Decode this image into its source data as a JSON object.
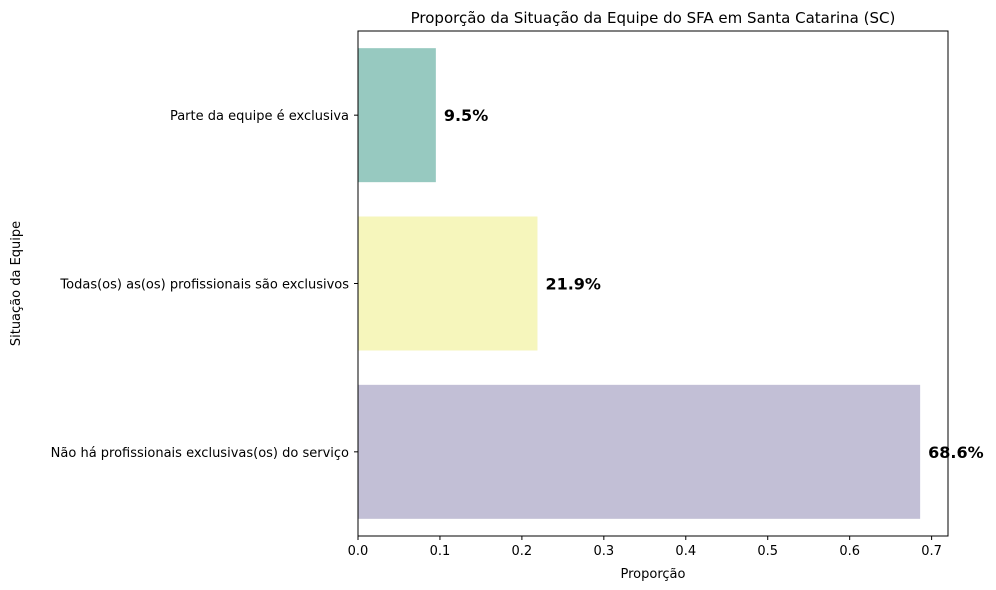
{
  "chart_data": {
    "type": "bar",
    "orientation": "horizontal",
    "title": "Proporção da Situação da Equipe do SFA em Santa Catarina (SC)",
    "xlabel": "Proporção",
    "ylabel": "Situação da Equipe",
    "xlim": [
      0,
      0.72
    ],
    "xticks": [
      "0.0",
      "0.1",
      "0.2",
      "0.3",
      "0.4",
      "0.5",
      "0.6",
      "0.7"
    ],
    "grid": false,
    "categories": [
      "Parte da equipe é exclusiva",
      "Todas(os) as(os) profissionais são exclusivos",
      "Não há profissionais exclusivas(os) do serviço"
    ],
    "values": [
      0.095,
      0.219,
      0.686
    ],
    "data_labels": [
      "9.5%",
      "21.9%",
      "68.6%"
    ],
    "colors": [
      "#97c9c0",
      "#f6f6bc",
      "#c2bfd6"
    ]
  }
}
